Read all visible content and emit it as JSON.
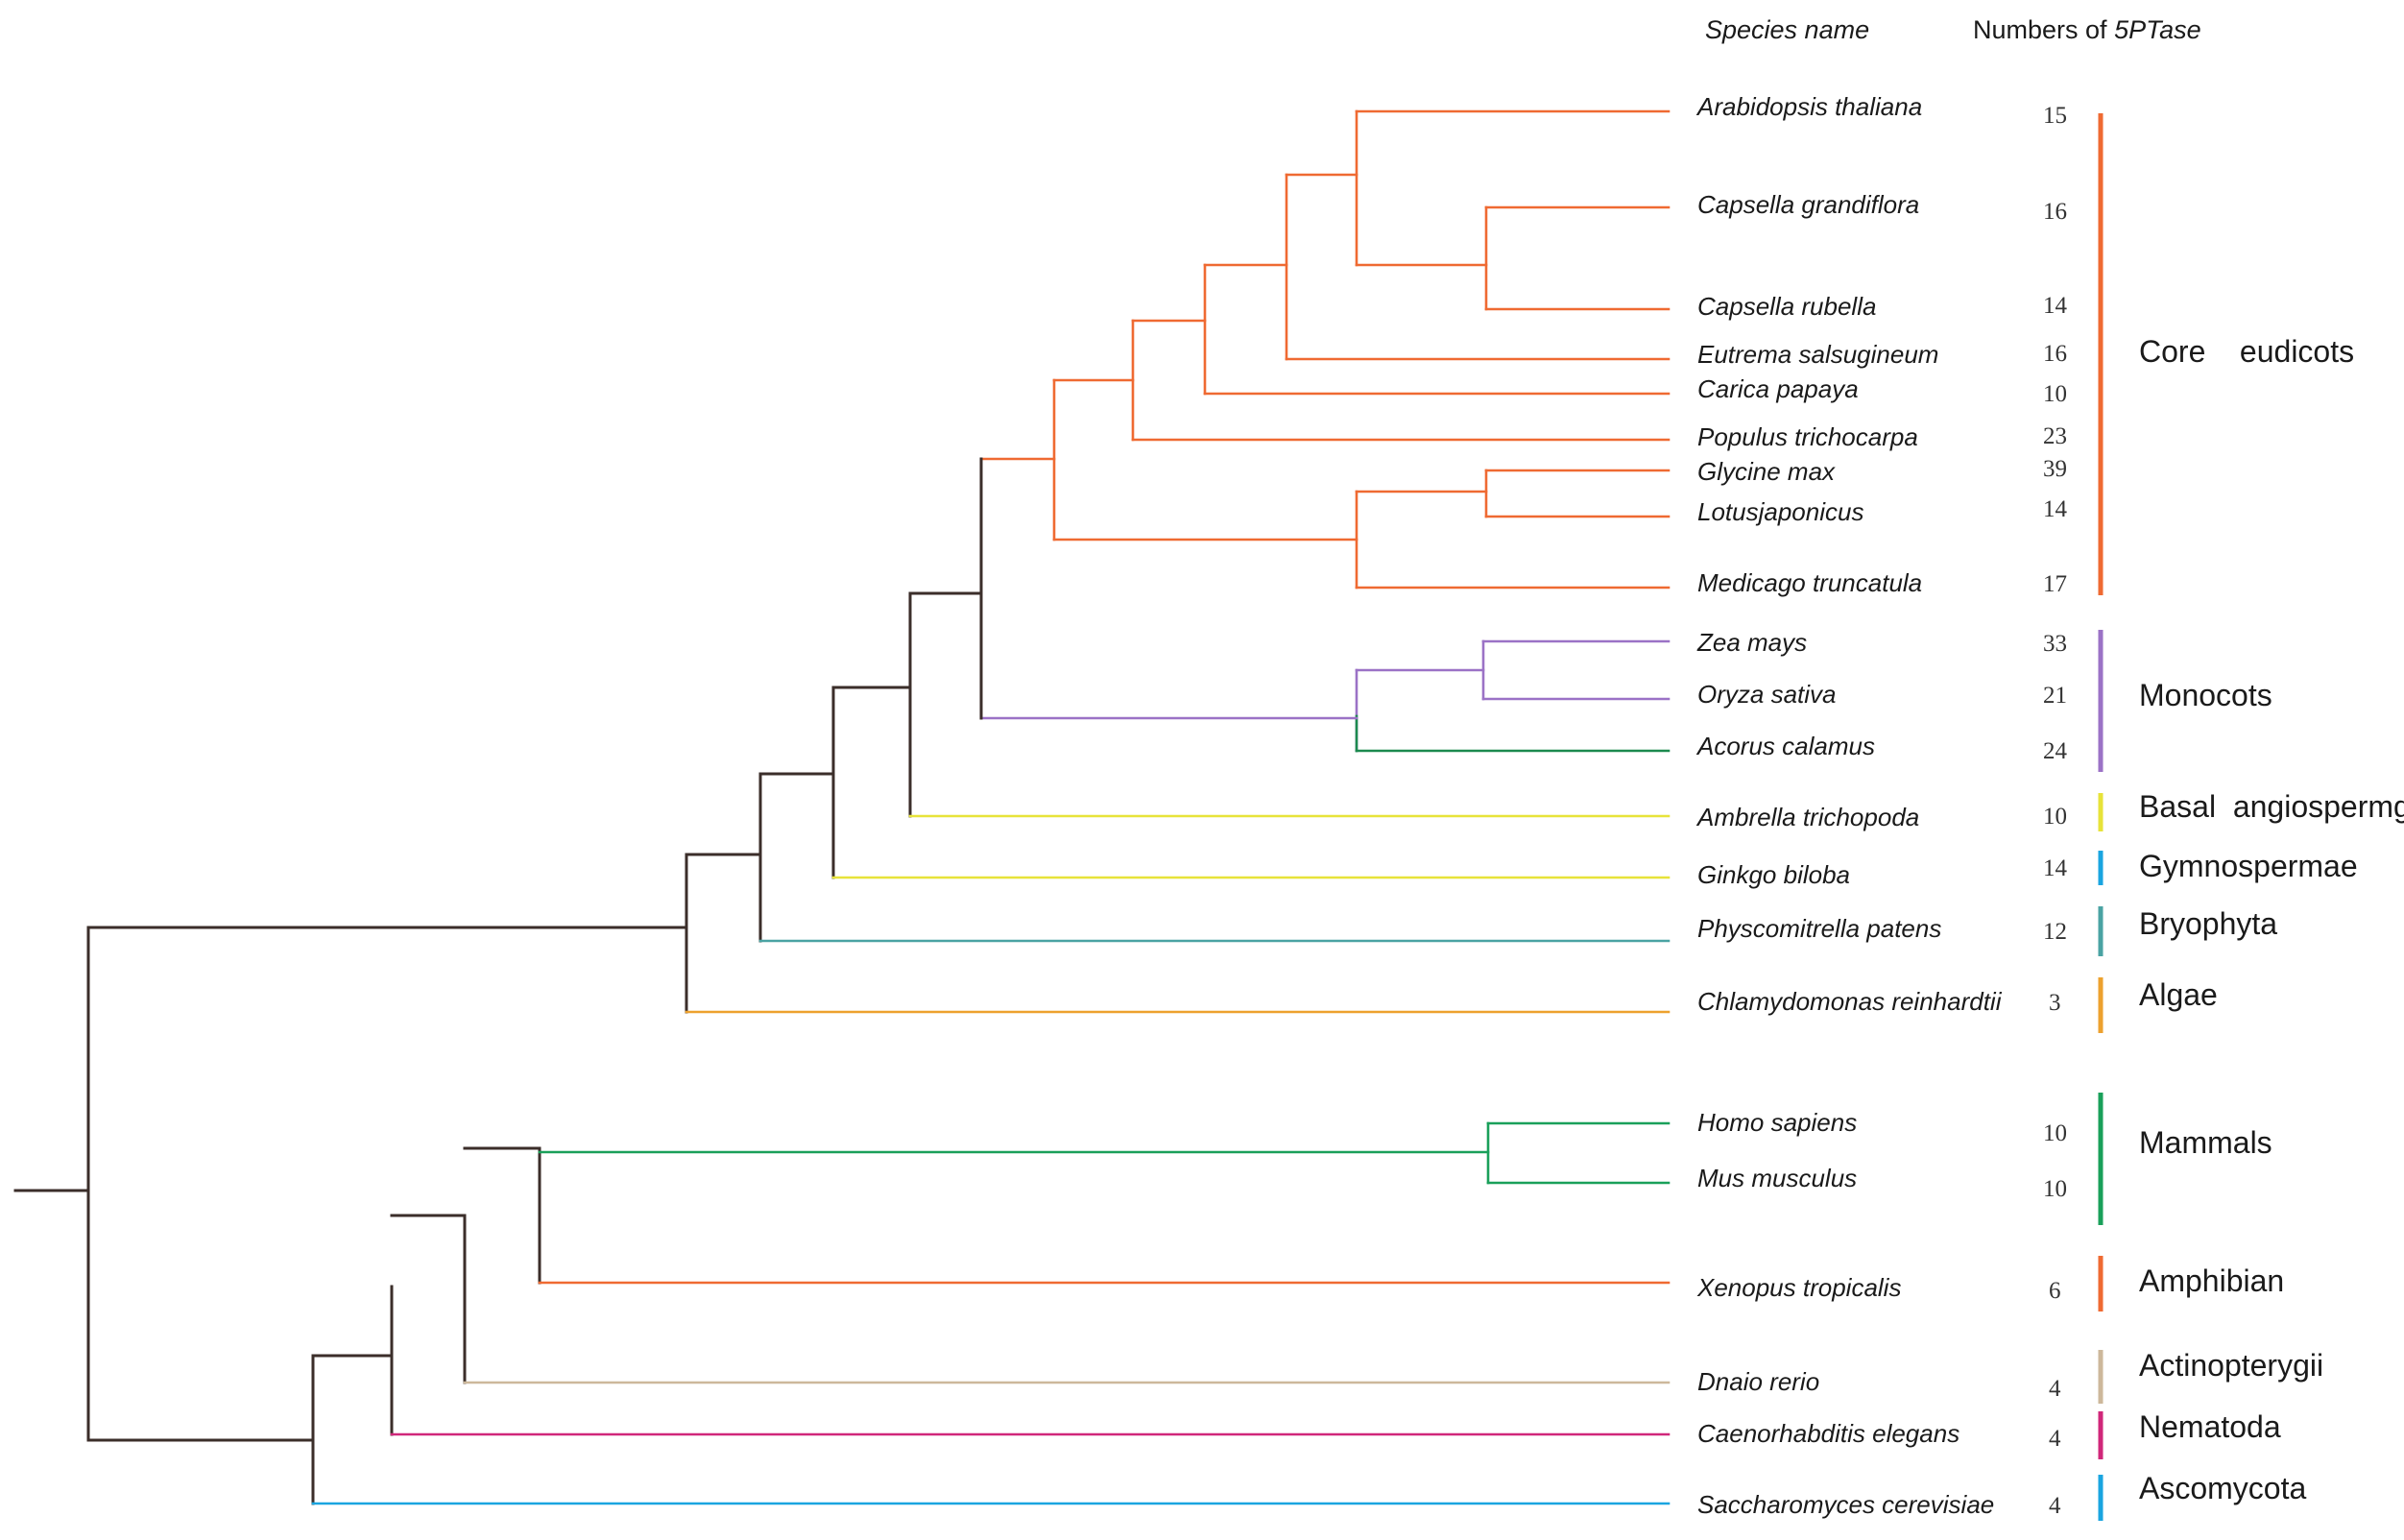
{
  "headers": {
    "species": "Species name",
    "numbers_prefix": "Numbers of ",
    "numbers_gene": "5PTase"
  },
  "colors": {
    "stem": "#3b2e2a",
    "eudicot": "#ef6a32",
    "monocot": "#9b72c6",
    "acorus": "#1c8a4f",
    "basal": "#e7e33a",
    "gymno": "#e7e33a",
    "bryo": "#4aa3a3",
    "algae": "#eda12e",
    "mammal": "#1aa05a",
    "amphib": "#ef6a32",
    "fish": "#cdb89b",
    "nema": "#d0277a",
    "ascomycota": "#1aa5e0"
  },
  "species": [
    {
      "name": "Arabidopsis  thaliana",
      "count": "15"
    },
    {
      "name": "Capsella grandiflora",
      "count": "16"
    },
    {
      "name": "Capsella rubella",
      "count": "14"
    },
    {
      "name": "Eutrema salsugineum",
      "count": "16"
    },
    {
      "name": "Carica papaya",
      "count": "10"
    },
    {
      "name": "Populus trichocarpa",
      "count": "23"
    },
    {
      "name": "Glycine max",
      "count": "39"
    },
    {
      "name": "Lotusjaponicus",
      "count": "14"
    },
    {
      "name": "Medicago truncatula",
      "count": "17"
    },
    {
      "name": "Zea mays",
      "count": "33"
    },
    {
      "name": "Oryza sativa",
      "count": "21"
    },
    {
      "name": "Acorus calamus",
      "count": "24"
    },
    {
      "name": "Ambrella trichopoda",
      "count": "10"
    },
    {
      "name": "Ginkgo biloba",
      "count": "14"
    },
    {
      "name": "Physcomitrella patens",
      "count": "12"
    },
    {
      "name": "Chlamydomonas reinhardtii",
      "count": "3"
    },
    {
      "name": "Homo sapiens",
      "count": "10"
    },
    {
      "name": "Mus musculus",
      "count": "10"
    },
    {
      "name": "Xenopus tropicalis",
      "count": "6"
    },
    {
      "name": "Dnaio rerio",
      "count": "4"
    },
    {
      "name": "Caenorhabditis elegans",
      "count": "4"
    },
    {
      "name": "Saccharomyces cerevisiae",
      "count": "4"
    }
  ],
  "groups": [
    {
      "label": "Core    eudicots",
      "color": "#ef6a32"
    },
    {
      "label": "Monocots",
      "color": "#9b72c6"
    },
    {
      "label": "Basal  angiospermg",
      "color": "#e7e33a"
    },
    {
      "label": "Gymnospermae",
      "color": "#1aa5e0"
    },
    {
      "label": "Bryophyta",
      "color": "#4aa3a3"
    },
    {
      "label": "Algae",
      "color": "#eda12e"
    },
    {
      "label": "Mammals",
      "color": "#1aa05a"
    },
    {
      "label": "Amphibian",
      "color": "#ef6a32"
    },
    {
      "label": "Actinopterygii",
      "color": "#cdb89b"
    },
    {
      "label": "Nematoda",
      "color": "#d0277a"
    },
    {
      "label": "Ascomycota",
      "color": "#1aa5e0"
    }
  ]
}
